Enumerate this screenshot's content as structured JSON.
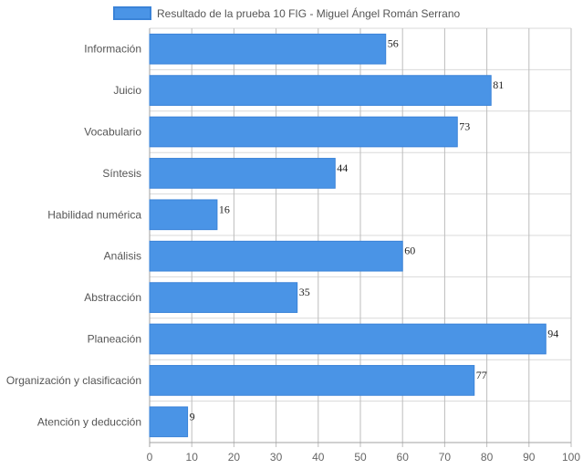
{
  "chart_data": {
    "type": "bar",
    "orientation": "horizontal",
    "title": "",
    "xlabel": "",
    "ylabel": "",
    "legend": {
      "position": "top",
      "entries": [
        "Resultado de la prueba 10 FIG - Miguel Ángel Román Serrano"
      ]
    },
    "categories": [
      "Información",
      "Juicio",
      "Vocabulario",
      "Síntesis",
      "Habilidad numérica",
      "Análisis",
      "Abstracción",
      "Planeación",
      "Organización y clasificación",
      "Atención y deducción"
    ],
    "series": [
      {
        "name": "Resultado de la prueba 10 FIG - Miguel Ángel Román Serrano",
        "values": [
          56,
          81,
          73,
          44,
          16,
          60,
          35,
          94,
          77,
          9
        ]
      }
    ],
    "xlim": [
      0,
      100
    ],
    "xticks": [
      0,
      10,
      20,
      30,
      40,
      50,
      60,
      70,
      80,
      90,
      100
    ],
    "grid": true,
    "colors": {
      "bar_fill": "#4a94e6",
      "bar_border": "#3a83d8",
      "grid": "#d9d9d9",
      "axis": "#a0a0a0"
    }
  }
}
